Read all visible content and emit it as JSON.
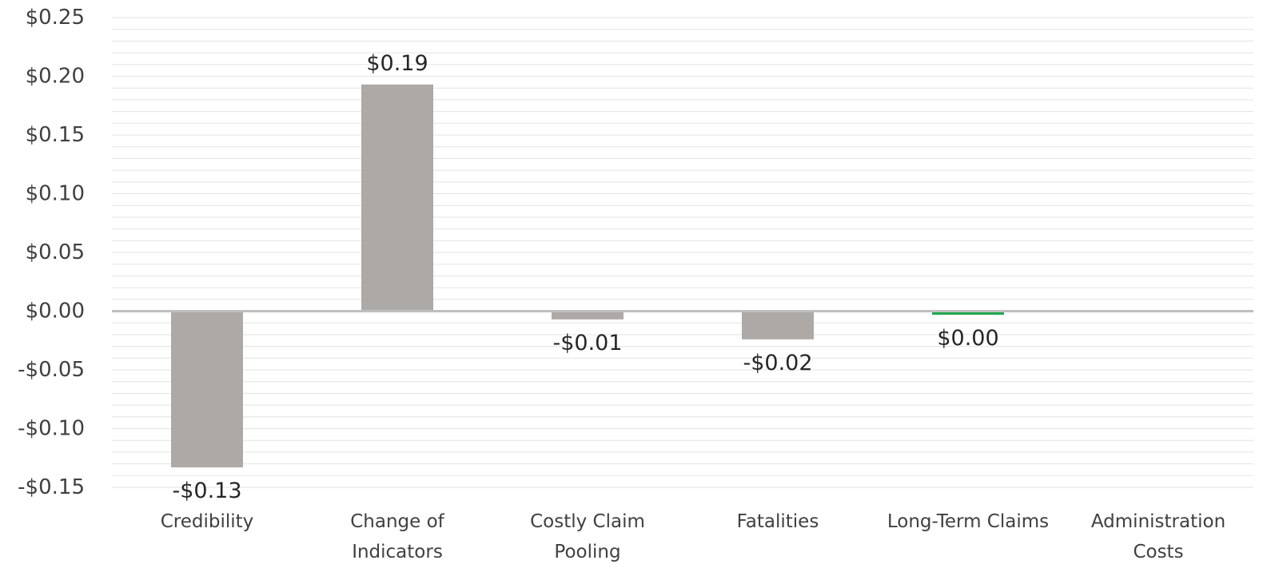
{
  "chart_data": {
    "type": "bar",
    "title": "",
    "xlabel": "",
    "ylabel": "",
    "categories": [
      [
        "Credibility"
      ],
      [
        "Change of",
        "Indicators"
      ],
      [
        "Costly Claim",
        "Pooling"
      ],
      [
        "Fatalities"
      ],
      [
        "Long-Term Claims"
      ],
      [
        "Administration",
        "Costs"
      ]
    ],
    "values": [
      -0.133,
      0.193,
      -0.007,
      -0.024,
      -0.003,
      0.0
    ],
    "data_labels": [
      "-$0.13",
      "$0.19",
      "-$0.01",
      "-$0.02",
      "$0.00",
      null
    ],
    "bar_colors": [
      "#ada9a7",
      "#ada9a7",
      "#ada9a7",
      "#ada9a7",
      "#1aa64a",
      "#ada9a7"
    ],
    "ylim": [
      -0.15,
      0.25
    ],
    "y_ticks": [
      0.25,
      0.2,
      0.15,
      0.1,
      0.05,
      0.0,
      -0.05,
      -0.1,
      -0.15
    ],
    "y_tick_labels": [
      "$0.25",
      "$0.20",
      "$0.15",
      "$0.10",
      "$0.05",
      "$0.00",
      "-$0.05",
      "-$0.10",
      "-$0.15"
    ],
    "minor_grid_step": 0.01,
    "grid": true,
    "legend": "none",
    "colors": {
      "grid": "#e3e3e3",
      "zero_line": "#bfbfbf",
      "tick_text": "#404040",
      "label_text": "#262626"
    }
  }
}
